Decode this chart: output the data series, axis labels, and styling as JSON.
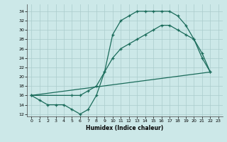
{
  "xlabel": "Humidex (Indice chaleur)",
  "bg_color": "#cce8e8",
  "grid_color": "#aacccc",
  "line_color": "#1a6b5a",
  "xlim": [
    -0.5,
    23.5
  ],
  "ylim": [
    11.5,
    35.5
  ],
  "xticks": [
    0,
    1,
    2,
    3,
    4,
    5,
    6,
    7,
    8,
    9,
    10,
    11,
    12,
    13,
    14,
    15,
    16,
    17,
    18,
    19,
    20,
    21,
    22,
    23
  ],
  "yticks": [
    12,
    14,
    16,
    18,
    20,
    22,
    24,
    26,
    28,
    30,
    32,
    34
  ],
  "line1_x": [
    0,
    1,
    2,
    3,
    4,
    5,
    6,
    7,
    8,
    9,
    10,
    11,
    12,
    13,
    14,
    15,
    16,
    17,
    18,
    19,
    20,
    21,
    22
  ],
  "line1_y": [
    16,
    15,
    14,
    14,
    14,
    13,
    12,
    13,
    16,
    21,
    29,
    32,
    33,
    34,
    34,
    34,
    34,
    34,
    33,
    31,
    28,
    24,
    21
  ],
  "line2_x": [
    0,
    22
  ],
  "line2_y": [
    16,
    21
  ],
  "line3_x": [
    0,
    5,
    6,
    7,
    8,
    9,
    10,
    11,
    12,
    13,
    14,
    15,
    16,
    17,
    18,
    19,
    20,
    21,
    22
  ],
  "line3_y": [
    16,
    16,
    16,
    17,
    18,
    21,
    24,
    26,
    27,
    28,
    29,
    30,
    31,
    31,
    30,
    29,
    28,
    25,
    21
  ]
}
